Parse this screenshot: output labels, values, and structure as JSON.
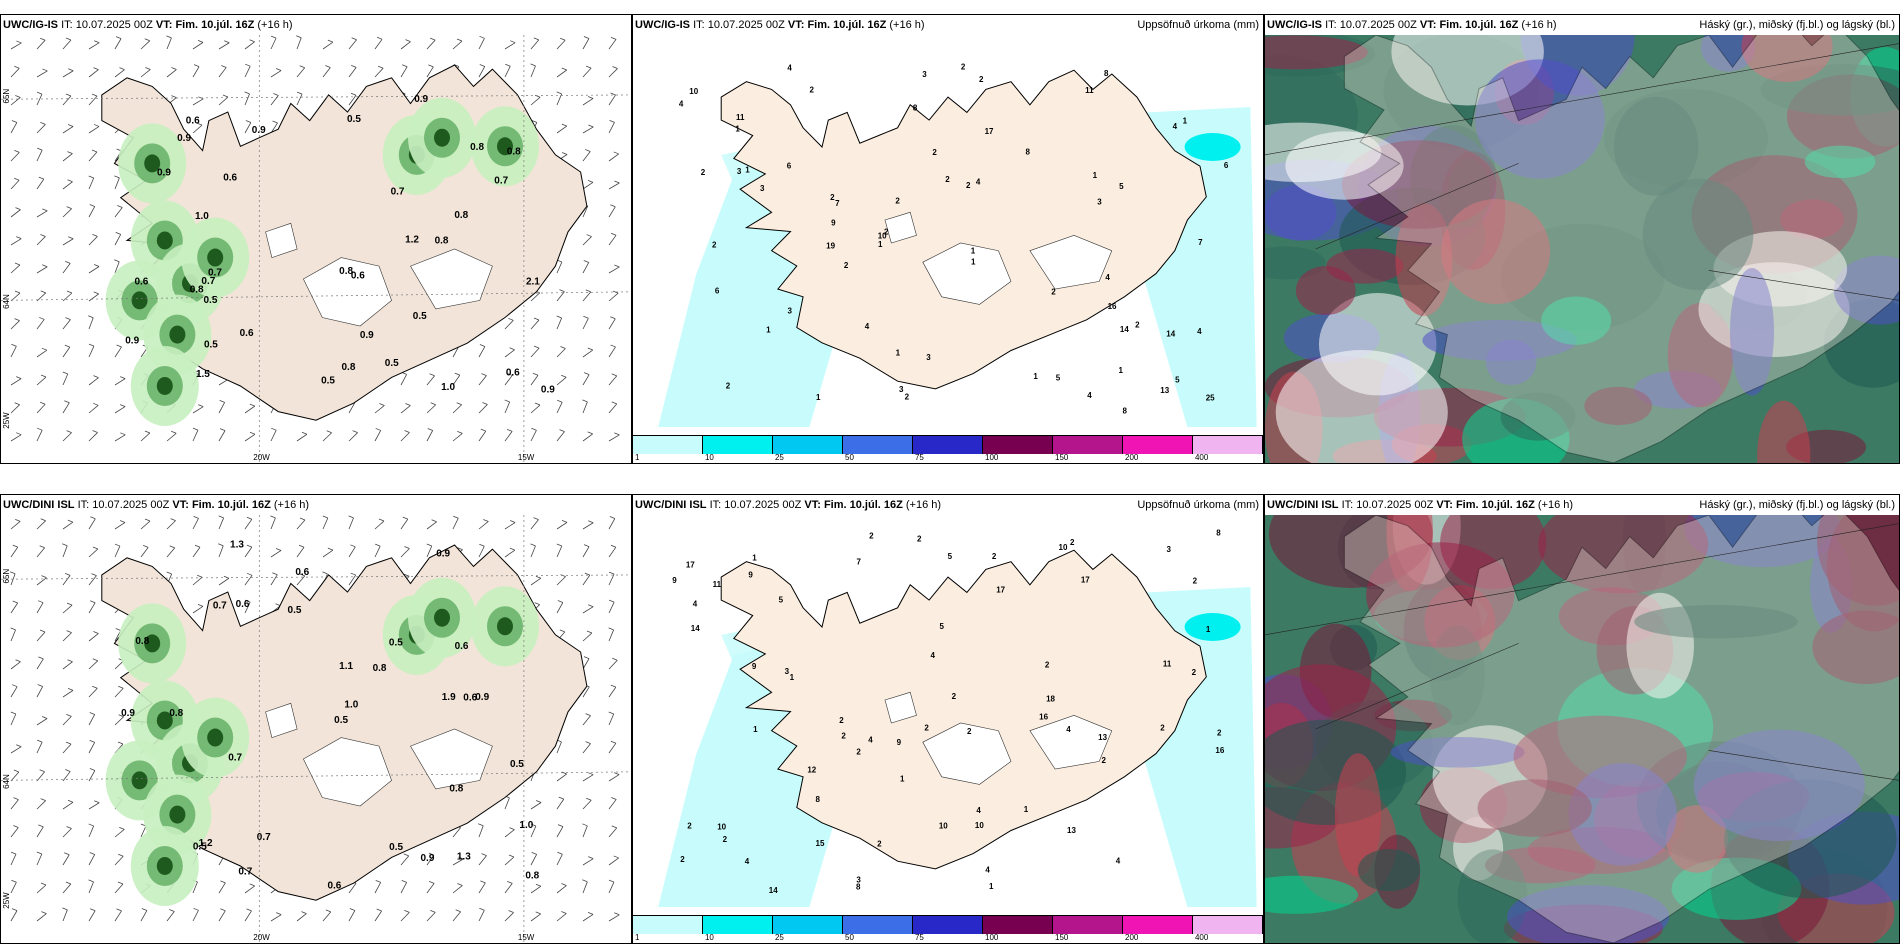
{
  "rows": [
    {
      "model": "UWC/IG-IS",
      "it_label": "IT:",
      "it_value": "10.07.2025 00Z",
      "vt_label": "VT:",
      "vt_value": "Fim. 10.júl. 16Z",
      "lead": "(+16 h)",
      "precip_title": "Uppsöfnuð úrkoma (mm)",
      "cloud_title": "Háský (gr.), miðský (fj.bl.) og lágský (bl.)",
      "wind_values": [
        "0.5",
        "1.5",
        "0.6",
        "0.5",
        "0.5",
        "0.8",
        "0.9",
        "0.7",
        "0.7",
        "0.5",
        "0.6",
        "0.7",
        "0.9",
        "0.5",
        "1.0",
        "0.9",
        "0.8",
        "0.6",
        "0.5",
        "0.8",
        "0.6",
        "0.9",
        "0.8",
        "1.0",
        "0.8",
        "0.8",
        "0.6",
        "1.2",
        "0.9",
        "0.9",
        "0.9",
        "2.1",
        "0.6",
        "0.8",
        "0.7"
      ],
      "precip_values": [
        "1",
        "1",
        "1",
        "2",
        "2",
        "4",
        "2",
        "2",
        "3",
        "2",
        "8",
        "13",
        "11",
        "2",
        "2",
        "2",
        "2",
        "2",
        "1",
        "1",
        "1",
        "2",
        "4",
        "4",
        "1",
        "3",
        "5",
        "6",
        "3",
        "2",
        "8",
        "19",
        "14",
        "2",
        "4",
        "5",
        "6",
        "7",
        "10",
        "6",
        "3",
        "7",
        "4",
        "3",
        "2",
        "2",
        "1",
        "1",
        "1",
        "2",
        "1",
        "1",
        "5",
        "8",
        "10",
        "11",
        "9",
        "16",
        "17",
        "14",
        "25",
        "4",
        "8",
        "4",
        "3",
        "3",
        "4"
      ],
      "lon_labels": [
        "20W",
        "15W"
      ],
      "lat_labels": [
        "65N",
        "64N",
        "25W"
      ]
    },
    {
      "model": "UWC/DINI ISL",
      "it_label": "IT:",
      "it_value": "10.07.2025 00Z",
      "vt_label": "VT:",
      "vt_value": "Fim. 10.júl. 16Z",
      "lead": "(+16 h)",
      "precip_title": "Uppsöfnuð úrkoma (mm)",
      "cloud_title": "Háský (gr.), miðský (fj.bl.) og lágský (bl.)",
      "wind_values": [
        "0.8",
        "1.0",
        "0.6",
        "0.5",
        "0.8",
        "0.9",
        "0.9",
        "0.7",
        "0.5",
        "1.3",
        "0.6",
        "0.9",
        "1.3",
        "0.5",
        "0.9",
        "1.9",
        "0.7",
        "0.5",
        "0.6",
        "1.0",
        "0.5",
        "0.7",
        "0.6",
        "1.2",
        "0.8",
        "0.7",
        "0.6",
        "0.5",
        "1.1",
        "0.8",
        "0.8"
      ],
      "precip_values": [
        "1",
        "2",
        "2",
        "5",
        "1",
        "2",
        "3",
        "2",
        "1",
        "2",
        "10",
        "9",
        "16",
        "1",
        "1",
        "2",
        "3",
        "2",
        "2",
        "1",
        "2",
        "2",
        "2",
        "4",
        "14",
        "17",
        "2",
        "4",
        "2",
        "2",
        "10",
        "3",
        "4",
        "7",
        "5",
        "4",
        "8",
        "5",
        "4",
        "2",
        "4",
        "2",
        "10",
        "17",
        "16",
        "9",
        "8",
        "9",
        "11",
        "13",
        "17",
        "18",
        "14",
        "11",
        "12",
        "10",
        "8",
        "1",
        "2",
        "2",
        "2",
        "4",
        "9",
        "15",
        "13",
        "2",
        "4"
      ],
      "lon_labels": [
        "20W",
        "15W"
      ],
      "lat_labels": [
        "65N",
        "64N",
        "25W"
      ]
    }
  ],
  "colorbar": {
    "ticks": [
      "1",
      "10",
      "25",
      "50",
      "75",
      "100",
      "150",
      "200",
      "400"
    ],
    "colors": [
      "#c8fcfc",
      "#00f0f0",
      "#00c8f0",
      "#3c6ee8",
      "#2828c8",
      "#780050",
      "#b4148c",
      "#f014b4",
      "#f0b4f0"
    ]
  }
}
